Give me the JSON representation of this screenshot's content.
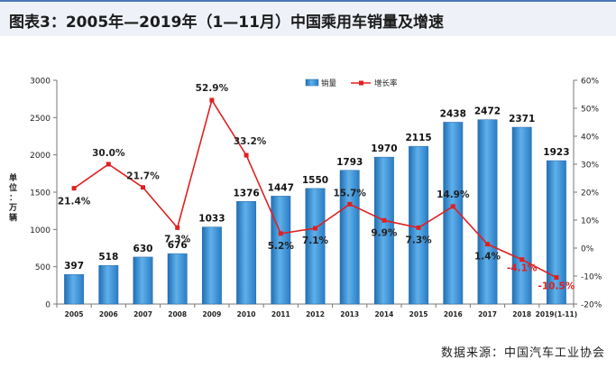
{
  "title": "图表3：2005年—2019年（1—11月）中国乘用车销量及增速",
  "source": "数据来源：中国汽车工业协会",
  "colors": {
    "bar": "#3d8fd1",
    "line": "#e02020",
    "axis": "#777777",
    "grid": "#d9d9d9"
  },
  "chart_data": {
    "type": "bar",
    "categories": [
      "2005",
      "2006",
      "2007",
      "2008",
      "2009",
      "2010",
      "2011",
      "2012",
      "2013",
      "2014",
      "2015",
      "2016",
      "2017",
      "2018",
      "2019(1-11)"
    ],
    "series": [
      {
        "name": "销量",
        "type": "bar",
        "axis": "left",
        "values": [
          397,
          518,
          630,
          676,
          1033,
          1376,
          1447,
          1550,
          1793,
          1970,
          2115,
          2438,
          2472,
          2371,
          1923
        ],
        "labels": [
          "397",
          "518",
          "630",
          "676",
          "1033",
          "1376",
          "1447",
          "1550",
          "1793",
          "1970",
          "2115",
          "2438",
          "2472",
          "2371",
          "1923"
        ]
      },
      {
        "name": "增长率",
        "type": "line",
        "axis": "right",
        "values": [
          21.4,
          30.0,
          21.7,
          7.3,
          52.9,
          33.2,
          5.2,
          7.1,
          15.7,
          9.9,
          7.3,
          14.9,
          1.4,
          -4.1,
          -10.5
        ],
        "labels": [
          "21.4%",
          "30.0%",
          "21.7%",
          "7.3%",
          "52.9%",
          "33.2%",
          "5.2%",
          "7.1%",
          "15.7%",
          "9.9%",
          "7.3%",
          "14.9%",
          "1.4%",
          "-4.1%",
          "-10.5%"
        ]
      }
    ],
    "ylabel": "单位：万辆",
    "ylim": [
      0,
      3000
    ],
    "yticks": [
      "0",
      "500",
      "1000",
      "1500",
      "2000",
      "2500",
      "3000"
    ],
    "y2lim": [
      -20,
      60
    ],
    "y2ticks": [
      "-20%",
      "-10%",
      "0%",
      "10%",
      "20%",
      "30%",
      "40%",
      "50%",
      "60%"
    ],
    "legend_position": "top-center",
    "grid": false
  }
}
